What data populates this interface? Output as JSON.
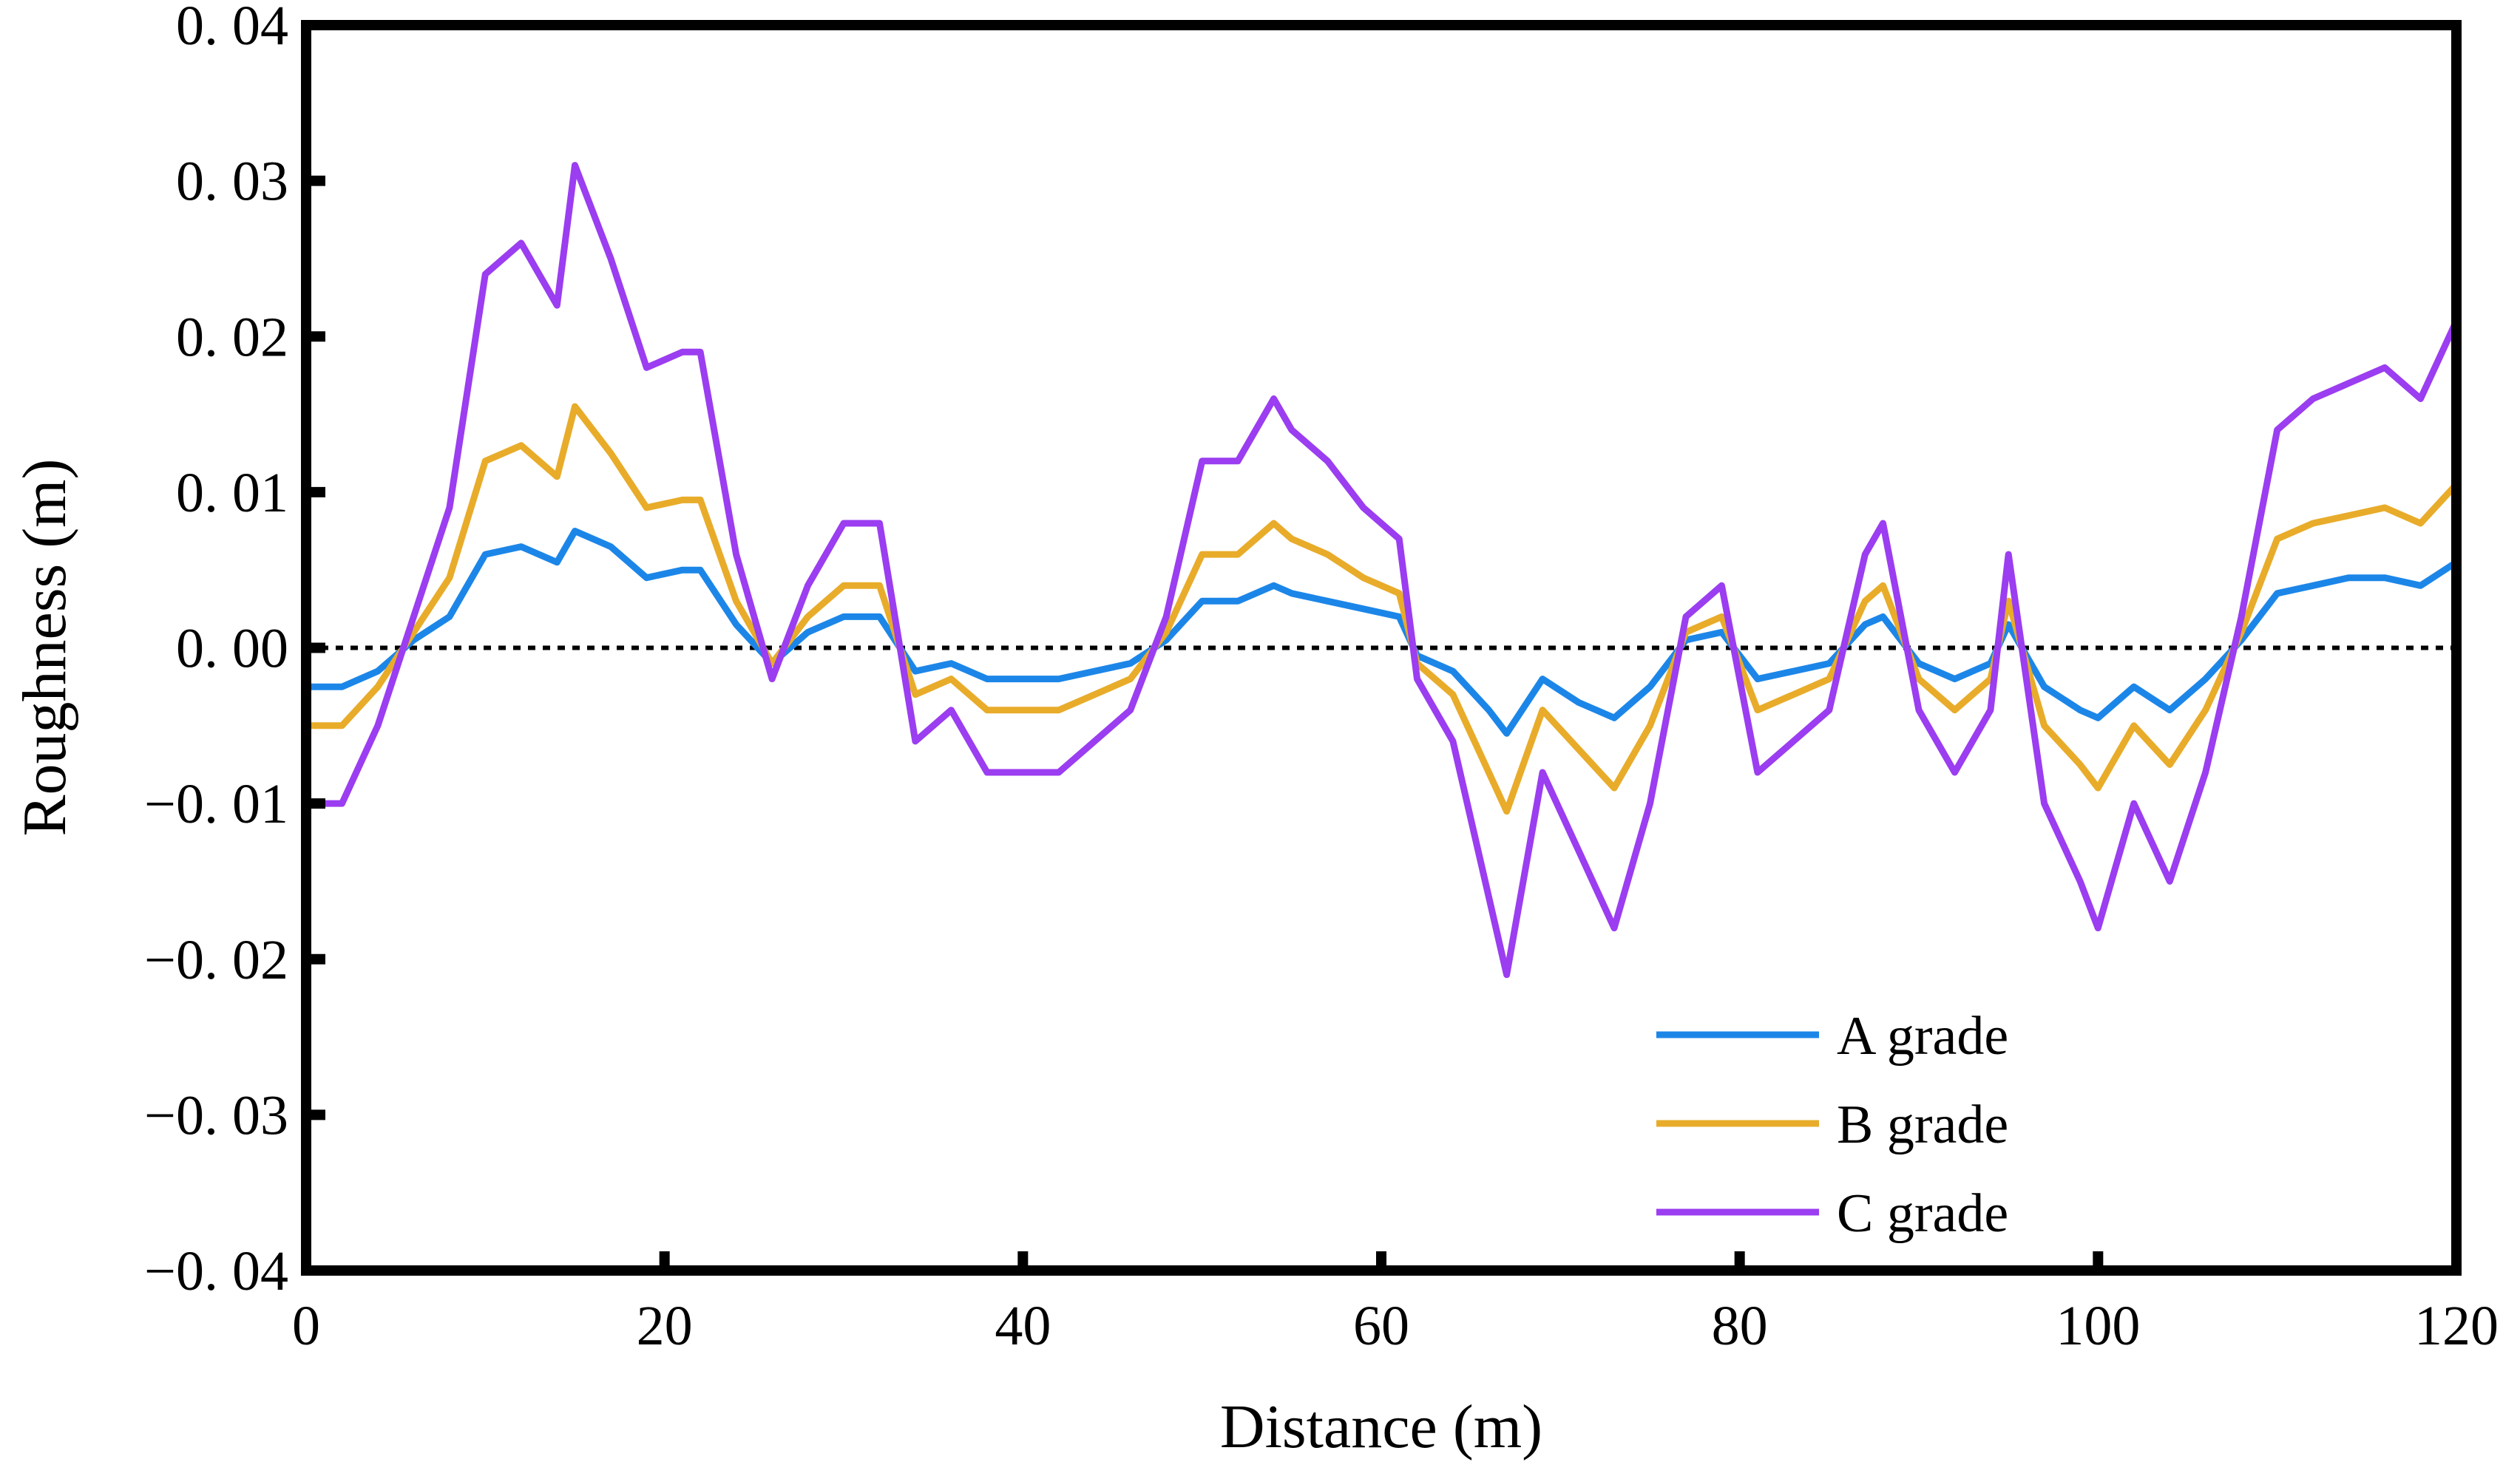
{
  "chart_data": {
    "type": "line",
    "title": "",
    "xlabel": "Distance (m)",
    "ylabel": "Roughness (m)",
    "xlim": [
      0,
      120
    ],
    "ylim": [
      -0.04,
      0.04
    ],
    "x_ticks": [
      0,
      20,
      40,
      60,
      80,
      100,
      120
    ],
    "x_tick_labels": [
      "0",
      "20",
      "40",
      "60",
      "80",
      "100",
      "120"
    ],
    "y_ticks": [
      -0.04,
      -0.03,
      -0.02,
      -0.01,
      0.0,
      0.01,
      0.02,
      0.03,
      0.04
    ],
    "y_tick_labels": [
      "−0. 04",
      "−0. 03",
      "−0. 02",
      "−0. 01",
      "0. 00",
      "0. 01",
      "0. 02",
      "0. 03",
      "0. 04"
    ],
    "grid": false,
    "legend_position": "bottom-right",
    "reference_line": {
      "y": 0,
      "style": "dotted",
      "color": "#000000"
    },
    "x": [
      0,
      2,
      4,
      6,
      8,
      10,
      12,
      14,
      15,
      17,
      19,
      21,
      22,
      24,
      26,
      28,
      30,
      32,
      34,
      36,
      38,
      40,
      42,
      44,
      46,
      48,
      50,
      52,
      54,
      55,
      57,
      59,
      61,
      62,
      64,
      66,
      67,
      69,
      71,
      73,
      75,
      77,
      79,
      81,
      83,
      85,
      87,
      88,
      90,
      92,
      94,
      95,
      97,
      99,
      100,
      102,
      104,
      106,
      108,
      110,
      112,
      114,
      116,
      118,
      120
    ],
    "series": [
      {
        "name": "A grade",
        "color": "#1c86e8",
        "values": [
          -0.0025,
          -0.0025,
          -0.0015,
          0.0005,
          0.002,
          0.006,
          0.0065,
          0.0055,
          0.0075,
          0.0065,
          0.0045,
          0.005,
          0.005,
          0.0015,
          -0.001,
          0.001,
          0.002,
          0.002,
          -0.0015,
          -0.001,
          -0.002,
          -0.002,
          -0.002,
          -0.0015,
          -0.001,
          0.0005,
          0.003,
          0.003,
          0.004,
          0.0035,
          0.003,
          0.0025,
          0.002,
          -0.0005,
          -0.0015,
          -0.004,
          -0.0055,
          -0.002,
          -0.0035,
          -0.0045,
          -0.0025,
          0.0005,
          0.001,
          -0.002,
          -0.0015,
          -0.001,
          0.0015,
          0.002,
          -0.001,
          -0.002,
          -0.001,
          0.0015,
          -0.0025,
          -0.004,
          -0.0045,
          -0.0025,
          -0.004,
          -0.002,
          0.0005,
          0.0035,
          0.004,
          0.0045,
          0.0045,
          0.004,
          0.0055
        ]
      },
      {
        "name": "B grade",
        "color": "#e8ac2a",
        "values": [
          -0.005,
          -0.005,
          -0.0025,
          0.001,
          0.0045,
          0.012,
          0.013,
          0.011,
          0.0155,
          0.0125,
          0.009,
          0.0095,
          0.0095,
          0.003,
          -0.001,
          0.002,
          0.004,
          0.004,
          -0.003,
          -0.002,
          -0.004,
          -0.004,
          -0.004,
          -0.003,
          -0.002,
          0.001,
          0.006,
          0.006,
          0.008,
          0.007,
          0.006,
          0.0045,
          0.0035,
          -0.001,
          -0.003,
          -0.008,
          -0.0105,
          -0.004,
          -0.0065,
          -0.009,
          -0.005,
          0.001,
          0.002,
          -0.004,
          -0.003,
          -0.002,
          0.003,
          0.004,
          -0.002,
          -0.004,
          -0.002,
          0.003,
          -0.005,
          -0.0075,
          -0.009,
          -0.005,
          -0.0075,
          -0.004,
          0.001,
          0.007,
          0.008,
          0.0085,
          0.009,
          0.008,
          0.0105
        ]
      },
      {
        "name": "C grade",
        "color": "#9b3df0",
        "values": [
          -0.01,
          -0.01,
          -0.005,
          0.002,
          0.009,
          0.024,
          0.026,
          0.022,
          0.031,
          0.025,
          0.018,
          0.019,
          0.019,
          0.006,
          -0.002,
          0.004,
          0.008,
          0.008,
          -0.006,
          -0.004,
          -0.008,
          -0.008,
          -0.008,
          -0.006,
          -0.004,
          0.002,
          0.012,
          0.012,
          0.016,
          0.014,
          0.012,
          0.009,
          0.007,
          -0.002,
          -0.006,
          -0.016,
          -0.021,
          -0.008,
          -0.013,
          -0.018,
          -0.01,
          0.002,
          0.004,
          -0.008,
          -0.006,
          -0.004,
          0.006,
          0.008,
          -0.004,
          -0.008,
          -0.004,
          0.006,
          -0.01,
          -0.015,
          -0.018,
          -0.01,
          -0.015,
          -0.008,
          0.002,
          0.014,
          0.016,
          0.017,
          0.018,
          0.016,
          0.021
        ]
      }
    ]
  }
}
